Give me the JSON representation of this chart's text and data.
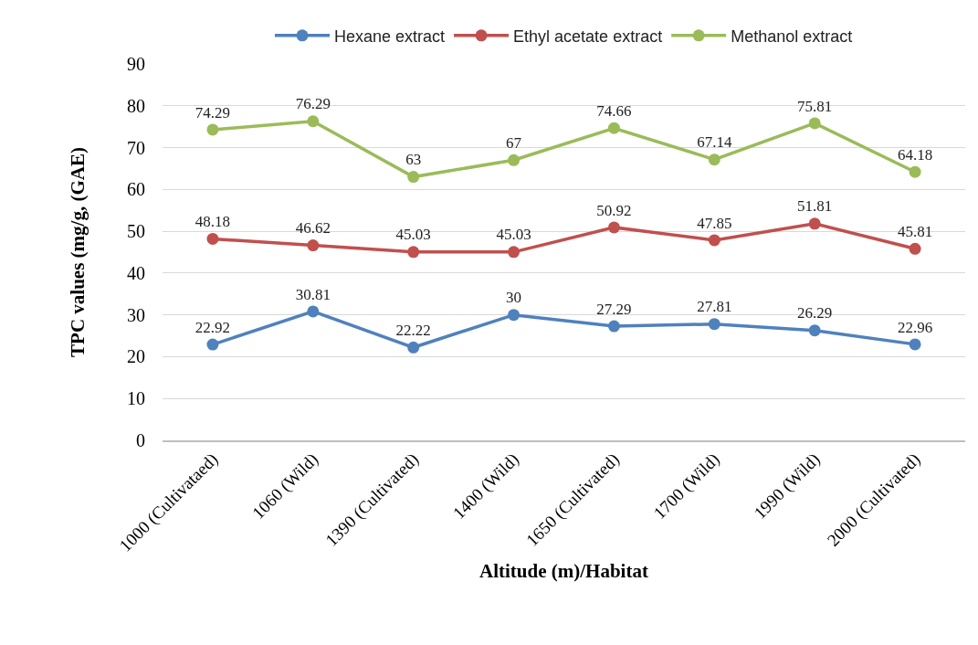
{
  "chart_data": {
    "type": "line",
    "xlabel": "Altitude (m)/Habitat",
    "ylabel": "TPC values (mg/g, (GAE)",
    "categories": [
      "1000 (Cultivataed)",
      "1060 (Wild)",
      "1390 (Cultivated)",
      "1400 (Wild)",
      "1650 (Cultivated)",
      "1700 (Wild)",
      "1990 (Wild)",
      "2000 (Cultivated)"
    ],
    "series": [
      {
        "name": "Hexane extract",
        "color": "#4f81bd",
        "values": [
          22.92,
          30.81,
          22.22,
          30,
          27.29,
          27.81,
          26.29,
          22.96
        ]
      },
      {
        "name": "Ethyl acetate extract",
        "color": "#c0504d",
        "values": [
          48.18,
          46.62,
          45.03,
          45.03,
          50.92,
          47.85,
          51.81,
          45.81
        ]
      },
      {
        "name": "Methanol extract",
        "color": "#9bbb59",
        "values": [
          74.29,
          76.29,
          63,
          67,
          74.66,
          67.14,
          75.81,
          64.18
        ]
      }
    ],
    "ylim": [
      0,
      90
    ],
    "yticks": [
      0,
      10,
      20,
      30,
      40,
      50,
      60,
      70,
      80,
      90
    ],
    "grid": "y",
    "legend": "top",
    "marker": "circle",
    "line_style": "solid",
    "data_labels": true
  }
}
